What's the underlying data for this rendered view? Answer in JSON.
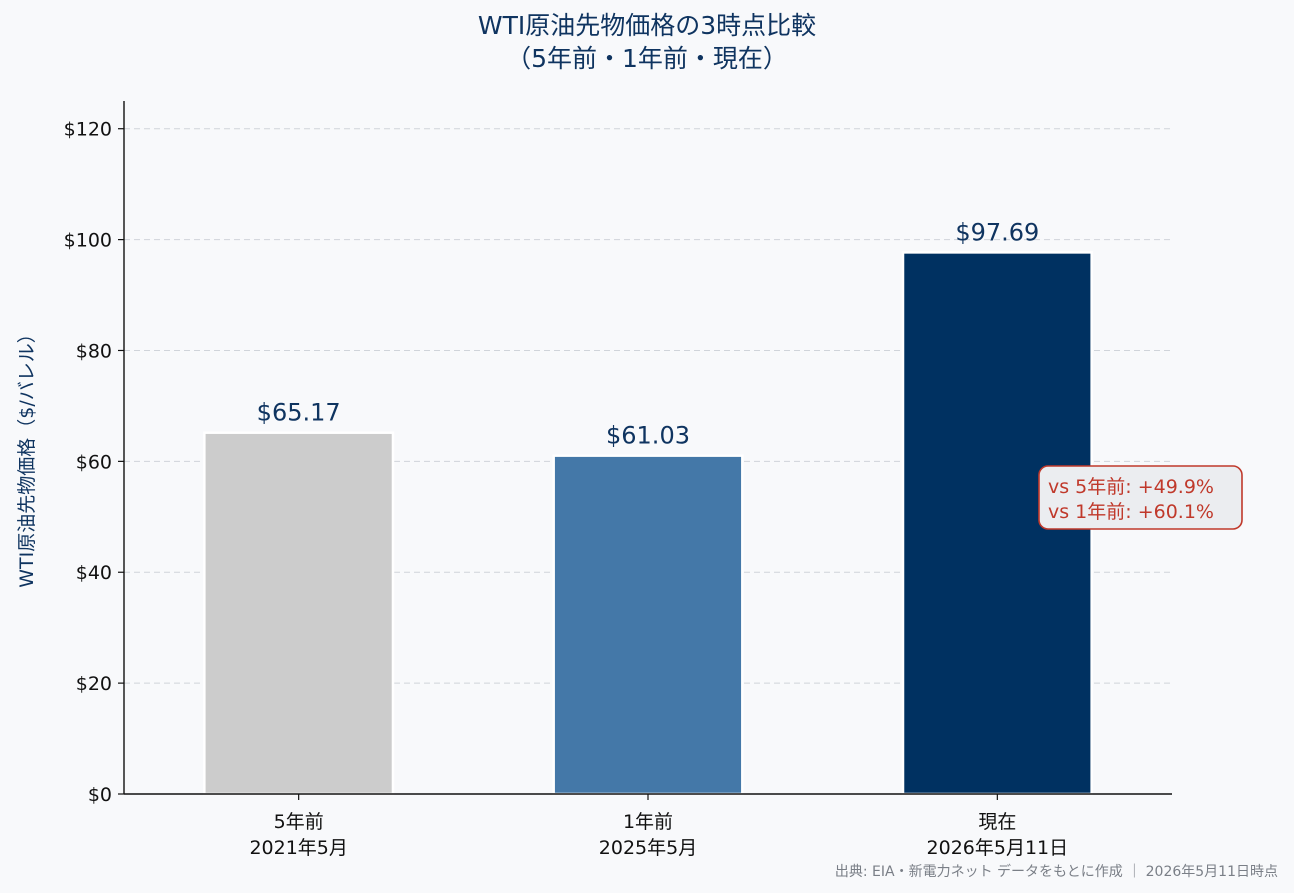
{
  "chart_data": {
    "type": "bar",
    "title": "WTI原油先物価格の3時点比較",
    "subtitle": "（5年前・1年前・現在）",
    "ylabel": "WTI原油先物価格（$/バレル）",
    "xlabel": "",
    "categories": [
      {
        "line1": "5年前",
        "line2": "2021年5月"
      },
      {
        "line1": "1年前",
        "line2": "2025年5月"
      },
      {
        "line1": "現在",
        "line2": "2026年5月11日"
      }
    ],
    "values": [
      65.17,
      61.03,
      97.69
    ],
    "value_labels": [
      "$65.17",
      "$61.03",
      "$97.69"
    ],
    "colors": [
      "#cccccc",
      "#4478a8",
      "#003161"
    ],
    "ylim": [
      0,
      125
    ],
    "yticks": [
      0,
      20,
      40,
      60,
      80,
      100,
      120
    ],
    "ytick_labels": [
      "$0",
      "$20",
      "$40",
      "$60",
      "$80",
      "$100",
      "$120"
    ],
    "grid": true,
    "annotation": {
      "line1": "vs 5年前: +49.9%",
      "line2": "vs 1年前: +60.1%"
    },
    "source": "出典: EIA・新電力ネット データをもとに作成 ｜ 2026年5月11日時点"
  }
}
